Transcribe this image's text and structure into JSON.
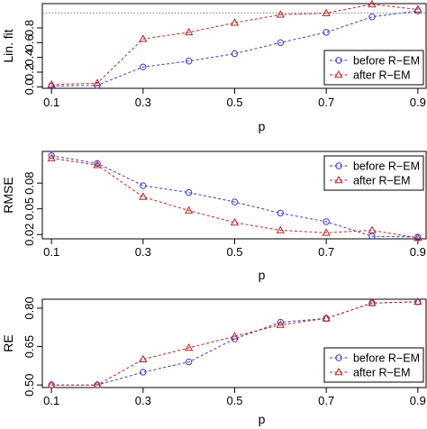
{
  "legend": {
    "before_label": "before R−EM",
    "after_label": "after R−EM",
    "placement": "bottom-right"
  },
  "colors": {
    "before": "#3a3ad6",
    "after": "#c02020",
    "reference_line": "#555555"
  },
  "chart_data": [
    {
      "type": "line",
      "xlabel": "p",
      "ylabel": "Lin. fit",
      "x": [
        0.1,
        0.2,
        0.3,
        0.4,
        0.5,
        0.6,
        0.7,
        0.8,
        0.9
      ],
      "xticks": [
        "0.1",
        "0.3",
        "0.5",
        "0.7",
        "0.9"
      ],
      "yticks": [
        "0.0",
        "0.2",
        "0.4",
        "0.6",
        "0.8"
      ],
      "xlim": [
        0.08,
        0.92
      ],
      "ylim": [
        -0.02,
        1.13
      ],
      "reference_y": 1.0,
      "legend_placement": "bottom-right",
      "series": [
        {
          "key": "before",
          "marker": "circle",
          "values": [
            0.01,
            0.02,
            0.27,
            0.35,
            0.45,
            0.6,
            0.74,
            0.95,
            1.03
          ]
        },
        {
          "key": "after",
          "marker": "triangle",
          "values": [
            0.03,
            0.05,
            0.65,
            0.74,
            0.87,
            0.98,
            1.0,
            1.12,
            1.05
          ]
        }
      ]
    },
    {
      "type": "line",
      "xlabel": "p",
      "ylabel": "RMSE",
      "x": [
        0.1,
        0.2,
        0.3,
        0.4,
        0.5,
        0.6,
        0.7,
        0.8,
        0.9
      ],
      "xticks": [
        "0.1",
        "0.3",
        "0.5",
        "0.7",
        "0.9"
      ],
      "yticks": [
        "0.02",
        "0.05",
        "0.08"
      ],
      "xlim": [
        0.08,
        0.92
      ],
      "ylim": [
        0.015,
        0.117
      ],
      "legend_placement": "top-right",
      "series": [
        {
          "key": "before",
          "marker": "circle",
          "values": [
            0.112,
            0.103,
            0.077,
            0.069,
            0.058,
            0.045,
            0.035,
            0.018,
            0.017
          ]
        },
        {
          "key": "after",
          "marker": "triangle",
          "values": [
            0.109,
            0.101,
            0.064,
            0.048,
            0.034,
            0.025,
            0.022,
            0.025,
            0.016
          ]
        }
      ]
    },
    {
      "type": "line",
      "xlabel": "p",
      "ylabel": "RE",
      "x": [
        0.1,
        0.2,
        0.3,
        0.4,
        0.5,
        0.6,
        0.7,
        0.8,
        0.9
      ],
      "xticks": [
        "0.1",
        "0.3",
        "0.5",
        "0.7",
        "0.9"
      ],
      "yticks": [
        "0.50",
        "0.65",
        "0.80"
      ],
      "xlim": [
        0.08,
        0.92
      ],
      "ylim": [
        0.49,
        0.835
      ],
      "legend_placement": "bottom-right",
      "series": [
        {
          "key": "before",
          "marker": "circle",
          "values": [
            0.5,
            0.5,
            0.55,
            0.59,
            0.68,
            0.745,
            0.76,
            0.82,
            0.825
          ]
        },
        {
          "key": "after",
          "marker": "triangle",
          "values": [
            0.5,
            0.5,
            0.6,
            0.645,
            0.69,
            0.735,
            0.76,
            0.82,
            0.825
          ]
        }
      ]
    }
  ]
}
